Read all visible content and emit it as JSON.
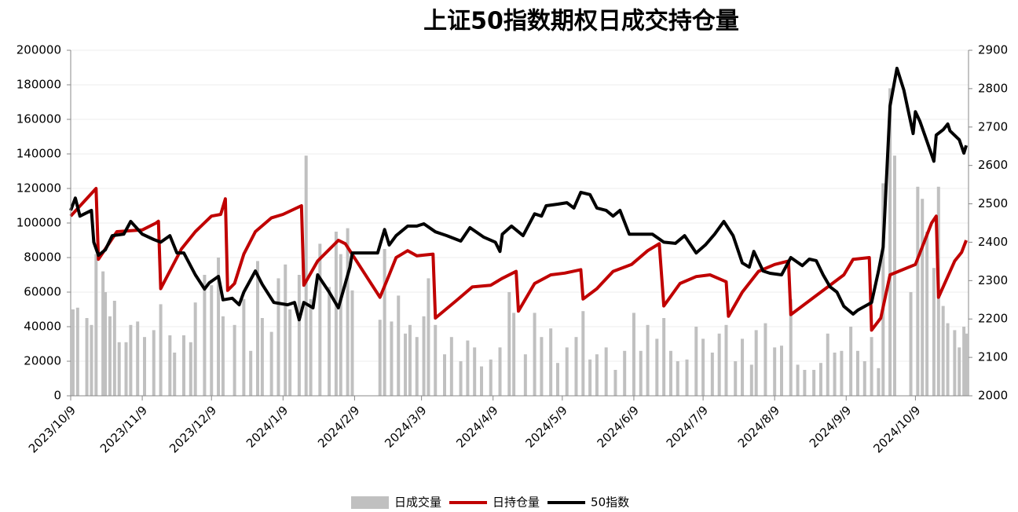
{
  "chart_data": {
    "type": "combo",
    "title": "上证50指数期权日成交持仓量",
    "xlim": [
      "2023/10/9",
      "2024/11/1"
    ],
    "xticks": [
      "2023/10/9",
      "2023/11/9",
      "2023/12/9",
      "2024/1/9",
      "2024/2/9",
      "2024/3/9",
      "2024/4/9",
      "2024/5/9",
      "2024/6/9",
      "2024/7/9",
      "2024/8/9",
      "2024/9/9",
      "2024/10/9"
    ],
    "ylim": [
      0,
      200000
    ],
    "yticks": [
      0,
      20000,
      40000,
      60000,
      80000,
      100000,
      120000,
      140000,
      160000,
      180000,
      200000
    ],
    "y2lim": [
      2000,
      2900
    ],
    "y2ticks": [
      2000,
      2100,
      2200,
      2300,
      2400,
      2500,
      2600,
      2700,
      2800,
      2900
    ],
    "grid": true,
    "legend": "bottom",
    "series": [
      {
        "name": "日成交量",
        "type": "bar",
        "color": "#c0c0c0",
        "x": [
          "2023/10/10",
          "2023/10/12",
          "2023/10/16",
          "2023/10/18",
          "2023/10/20",
          "2023/10/23",
          "2023/10/24",
          "2023/10/26",
          "2023/10/28",
          "2023/10/30",
          "2023/11/2",
          "2023/11/4",
          "2023/11/7",
          "2023/11/10",
          "2023/11/14",
          "2023/11/17",
          "2023/11/21",
          "2023/11/23",
          "2023/11/27",
          "2023/11/30",
          "2023/12/2",
          "2023/12/6",
          "2023/12/9",
          "2023/12/12",
          "2023/12/14",
          "2023/12/19",
          "2023/12/23",
          "2023/12/26",
          "2023/12/29",
          "2023/12/31",
          "2024/1/4",
          "2024/1/7",
          "2024/1/10",
          "2024/1/12",
          "2024/1/16",
          "2024/1/19",
          "2024/1/21",
          "2024/1/25",
          "2024/1/29",
          "2024/2/1",
          "2024/2/3",
          "2024/2/6",
          "2024/2/8",
          "2024/2/20",
          "2024/2/22",
          "2024/2/25",
          "2024/2/28",
          "2024/3/2",
          "2024/3/4",
          "2024/3/7",
          "2024/3/10",
          "2024/3/12",
          "2024/3/15",
          "2024/3/19",
          "2024/3/22",
          "2024/3/26",
          "2024/3/29",
          "2024/4/1",
          "2024/4/4",
          "2024/4/8",
          "2024/4/12",
          "2024/4/16",
          "2024/4/18",
          "2024/4/23",
          "2024/4/27",
          "2024/4/30",
          "2024/5/4",
          "2024/5/7",
          "2024/5/11",
          "2024/5/15",
          "2024/5/18",
          "2024/5/21",
          "2024/5/24",
          "2024/5/28",
          "2024/6/1",
          "2024/6/5",
          "2024/6/9",
          "2024/6/12",
          "2024/6/15",
          "2024/6/19",
          "2024/6/22",
          "2024/6/25",
          "2024/6/28",
          "2024/7/2",
          "2024/7/6",
          "2024/7/9",
          "2024/7/13",
          "2024/7/16",
          "2024/7/19",
          "2024/7/23",
          "2024/7/26",
          "2024/7/30",
          "2024/8/1",
          "2024/8/5",
          "2024/8/9",
          "2024/8/12",
          "2024/8/16",
          "2024/8/19",
          "2024/8/22",
          "2024/8/26",
          "2024/8/29",
          "2024/9/1",
          "2024/9/4",
          "2024/9/7",
          "2024/9/11",
          "2024/9/14",
          "2024/9/17",
          "2024/9/20",
          "2024/9/23",
          "2024/9/25",
          "2024/9/28",
          "2024/9/30",
          "2024/10/7",
          "2024/10/10",
          "2024/10/12",
          "2024/10/14",
          "2024/10/17",
          "2024/10/19",
          "2024/10/21",
          "2024/10/23",
          "2024/10/26",
          "2024/10/28",
          "2024/10/30",
          "2024/10/31"
        ],
        "values": [
          50000,
          51000,
          45000,
          41000,
          82000,
          72000,
          60000,
          46000,
          55000,
          31000,
          31000,
          41000,
          43000,
          34000,
          38000,
          53000,
          35000,
          25000,
          35000,
          31000,
          54000,
          70000,
          64000,
          80000,
          46000,
          41000,
          56000,
          26000,
          78000,
          45000,
          37000,
          68000,
          76000,
          50000,
          70000,
          139000,
          56000,
          88000,
          63000,
          95000,
          82000,
          97000,
          61000,
          44000,
          85000,
          43000,
          58000,
          36000,
          41000,
          34000,
          46000,
          68000,
          41000,
          24000,
          34000,
          20000,
          32000,
          28000,
          17000,
          21000,
          28000,
          60000,
          48000,
          24000,
          48000,
          34000,
          39000,
          19000,
          28000,
          34000,
          49000,
          21000,
          24000,
          28000,
          15000,
          26000,
          48000,
          26000,
          41000,
          33000,
          45000,
          26000,
          20000,
          21000,
          40000,
          33000,
          25000,
          36000,
          41000,
          20000,
          33000,
          18000,
          38000,
          42000,
          28000,
          29000,
          56000,
          18000,
          15000,
          15000,
          19000,
          36000,
          25000,
          26000,
          40000,
          26000,
          20000,
          34000,
          16000,
          123000,
          178000,
          139000,
          60000,
          121000,
          114000,
          95000,
          74000,
          121000,
          52000,
          42000,
          38000,
          28000,
          40000,
          36000
        ]
      },
      {
        "name": "日持仓量",
        "type": "line",
        "color": "#c00000",
        "x": [
          "2023/10/9",
          "2023/10/20",
          "2023/10/21",
          "2023/10/29",
          "2023/11/9",
          "2023/11/15",
          "2023/11/16",
          "2023/11/17",
          "2023/11/26",
          "2023/12/2",
          "2023/12/9",
          "2023/12/13",
          "2023/12/15",
          "2023/12/16",
          "2023/12/19",
          "2023/12/23",
          "2023/12/28",
          "2024/1/4",
          "2024/1/9",
          "2024/1/17",
          "2024/1/18",
          "2024/1/24",
          "2024/2/2",
          "2024/2/5",
          "2024/2/20",
          "2024/2/24",
          "2024/2/27",
          "2024/3/3",
          "2024/3/7",
          "2024/3/14",
          "2024/3/15",
          "2024/3/24",
          "2024/3/31",
          "2024/4/8",
          "2024/4/13",
          "2024/4/19",
          "2024/4/20",
          "2024/4/27",
          "2024/5/4",
          "2024/5/10",
          "2024/5/17",
          "2024/5/18",
          "2024/5/24",
          "2024/5/31",
          "2024/6/8",
          "2024/6/15",
          "2024/6/20",
          "2024/6/22",
          "2024/6/29",
          "2024/7/6",
          "2024/7/12",
          "2024/7/19",
          "2024/7/20",
          "2024/7/26",
          "2024/8/2",
          "2024/8/9",
          "2024/8/15",
          "2024/8/16",
          "2024/8/24",
          "2024/8/31",
          "2024/9/8",
          "2024/9/12",
          "2024/9/19",
          "2024/9/20",
          "2024/9/24",
          "2024/9/28",
          "2024/10/9",
          "2024/10/16",
          "2024/10/18",
          "2024/10/19",
          "2024/10/26",
          "2024/10/29",
          "2024/10/31"
        ],
        "values": [
          104000,
          120000,
          79000,
          95000,
          96000,
          100000,
          101000,
          62000,
          85000,
          95000,
          104000,
          105000,
          114000,
          61000,
          65000,
          82000,
          95000,
          103000,
          105000,
          110000,
          64000,
          78000,
          90000,
          88000,
          57000,
          70000,
          80000,
          84000,
          81000,
          82000,
          45000,
          55000,
          63000,
          64000,
          68000,
          72000,
          49000,
          65000,
          70000,
          71000,
          73000,
          56000,
          62000,
          72000,
          76000,
          84000,
          88000,
          52000,
          65000,
          69000,
          70000,
          66000,
          46000,
          60000,
          72000,
          76000,
          78000,
          47000,
          55000,
          62000,
          70000,
          79000,
          80000,
          38000,
          45000,
          70000,
          76000,
          100000,
          104000,
          57000,
          78000,
          83000,
          90000
        ]
      },
      {
        "name": "50指数",
        "type": "line",
        "color": "#000000",
        "axis": "y2",
        "x": [
          "2023/10/9",
          "2023/10/11",
          "2023/10/13",
          "2023/10/18",
          "2023/10/19",
          "2023/10/21",
          "2023/10/24",
          "2023/10/27",
          "2023/11/1",
          "2023/11/4",
          "2023/11/9",
          "2023/11/14",
          "2023/11/17",
          "2023/11/21",
          "2023/11/24",
          "2023/11/27",
          "2023/12/2",
          "2023/12/6",
          "2023/12/8",
          "2023/12/12",
          "2023/12/14",
          "2023/12/18",
          "2023/12/21",
          "2023/12/23",
          "2023/12/28",
          "2023/12/31",
          "2024/1/5",
          "2024/1/11",
          "2024/1/14",
          "2024/1/16",
          "2024/1/18",
          "2024/1/22",
          "2024/1/24",
          "2024/1/29",
          "2024/2/2",
          "2024/2/7",
          "2024/2/8",
          "2024/2/19",
          "2024/2/22",
          "2024/2/24",
          "2024/2/27",
          "2024/3/3",
          "2024/3/7",
          "2024/3/10",
          "2024/3/15",
          "2024/3/20",
          "2024/3/26",
          "2024/3/30",
          "2024/4/5",
          "2024/4/10",
          "2024/4/12",
          "2024/4/13",
          "2024/4/17",
          "2024/4/22",
          "2024/4/27",
          "2024/4/30",
          "2024/5/2",
          "2024/5/7",
          "2024/5/11",
          "2024/5/14",
          "2024/5/17",
          "2024/5/21",
          "2024/5/24",
          "2024/5/28",
          "2024/5/31",
          "2024/6/3",
          "2024/6/7",
          "2024/6/12",
          "2024/6/17",
          "2024/6/22",
          "2024/6/27",
          "2024/7/1",
          "2024/7/6",
          "2024/7/10",
          "2024/7/14",
          "2024/7/18",
          "2024/7/22",
          "2024/7/26",
          "2024/7/29",
          "2024/7/31",
          "2024/8/4",
          "2024/8/7",
          "2024/8/12",
          "2024/8/16",
          "2024/8/21",
          "2024/8/24",
          "2024/8/27",
          "2024/8/30",
          "2024/9/2",
          "2024/9/5",
          "2024/9/8",
          "2024/9/12",
          "2024/9/14",
          "2024/9/20",
          "2024/9/23",
          "2024/9/25",
          "2024/9/28",
          "2024/10/1",
          "2024/10/4",
          "2024/10/8",
          "2024/10/9",
          "2024/10/11",
          "2024/10/14",
          "2024/10/17",
          "2024/10/18",
          "2024/10/21",
          "2024/10/23",
          "2024/10/24",
          "2024/10/28",
          "2024/10/30",
          "2024/10/31"
        ],
        "values": [
          2483,
          2515,
          2468,
          2483,
          2400,
          2366,
          2380,
          2417,
          2421,
          2454,
          2421,
          2407,
          2400,
          2417,
          2372,
          2372,
          2315,
          2278,
          2294,
          2311,
          2250,
          2254,
          2237,
          2270,
          2325,
          2290,
          2243,
          2237,
          2243,
          2198,
          2243,
          2229,
          2315,
          2270,
          2229,
          2335,
          2372,
          2372,
          2433,
          2393,
          2417,
          2442,
          2442,
          2448,
          2427,
          2417,
          2403,
          2438,
          2413,
          2400,
          2376,
          2421,
          2442,
          2417,
          2474,
          2468,
          2495,
          2499,
          2503,
          2489,
          2530,
          2524,
          2489,
          2483,
          2468,
          2483,
          2421,
          2421,
          2421,
          2400,
          2397,
          2417,
          2372,
          2393,
          2421,
          2454,
          2417,
          2346,
          2335,
          2376,
          2325,
          2319,
          2315,
          2360,
          2339,
          2356,
          2352,
          2315,
          2284,
          2270,
          2233,
          2213,
          2223,
          2243,
          2325,
          2387,
          2755,
          2853,
          2796,
          2683,
          2740,
          2714,
          2663,
          2611,
          2679,
          2693,
          2708,
          2690,
          2667,
          2632,
          2652
        ]
      }
    ]
  }
}
